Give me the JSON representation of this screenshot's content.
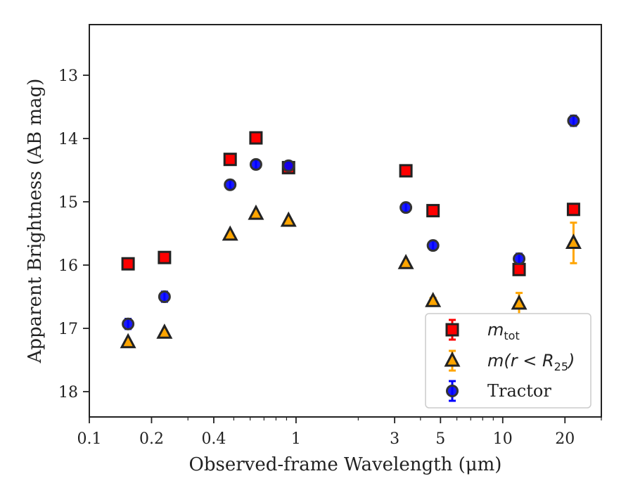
{
  "chart_data": {
    "type": "scatter",
    "title": "",
    "xlabel": "Observed-frame Wavelength (μm)",
    "ylabel": "Apparent Brightness (AB mag)",
    "x_scale": "log",
    "xlim": [
      0.1,
      30
    ],
    "ylim": [
      18.4,
      12.2
    ],
    "y_inverted": true,
    "x_ticks": [
      0.1,
      0.2,
      0.4,
      1,
      3,
      5,
      10,
      20
    ],
    "x_tick_labels": [
      "0.1",
      "0.2",
      "0.4",
      "1",
      "3",
      "5",
      "10",
      "20"
    ],
    "y_ticks": [
      13,
      14,
      15,
      16,
      17,
      18
    ],
    "y_tick_labels": [
      "13",
      "14",
      "15",
      "16",
      "17",
      "18"
    ],
    "grid": false,
    "legend_position": "lower-right",
    "legend": [
      {
        "key": "mtot",
        "label": "m",
        "subscript": "tot",
        "color": "#ff0000",
        "marker": "square",
        "errcolor": "#ff0000"
      },
      {
        "key": "mr25",
        "label": "m(r < R",
        "subscript": "25",
        "suffix": ")",
        "color": "#ffa500",
        "marker": "triangle",
        "errcolor": "#ffa500"
      },
      {
        "key": "tractor",
        "label": "Tractor",
        "color": "#0000ff",
        "marker": "circle",
        "errcolor": "#0000ff"
      }
    ],
    "series": [
      {
        "key": "mtot",
        "x": [
          0.154,
          0.231,
          0.48,
          0.64,
          0.92,
          3.4,
          4.6,
          12.0,
          22.0
        ],
        "y": [
          15.98,
          15.88,
          14.33,
          13.99,
          14.46,
          14.51,
          15.14,
          16.07,
          15.12
        ],
        "err": [
          0.04,
          0.04,
          0.04,
          0.04,
          0.04,
          0.04,
          0.04,
          0.06,
          0.06
        ]
      },
      {
        "key": "mr25",
        "x": [
          0.154,
          0.231,
          0.48,
          0.64,
          0.92,
          3.4,
          4.6,
          12.0,
          22.0
        ],
        "y": [
          17.22,
          17.07,
          15.52,
          15.19,
          15.3,
          15.97,
          16.57,
          16.61,
          15.65
        ],
        "err": [
          0.02,
          0.02,
          0.02,
          0.02,
          0.02,
          0.03,
          0.05,
          0.17,
          0.32
        ]
      },
      {
        "key": "tractor",
        "x": [
          0.154,
          0.231,
          0.48,
          0.64,
          0.92,
          3.4,
          4.6,
          12.0,
          22.0
        ],
        "y": [
          16.93,
          16.5,
          14.73,
          14.41,
          14.43,
          15.09,
          15.69,
          15.9,
          13.72
        ],
        "err": [
          0.08,
          0.08,
          0.07,
          0.07,
          0.07,
          0.07,
          0.07,
          0.08,
          0.08
        ]
      }
    ]
  },
  "colors": {
    "marker_edge": "#222222",
    "axes": "#222222"
  }
}
